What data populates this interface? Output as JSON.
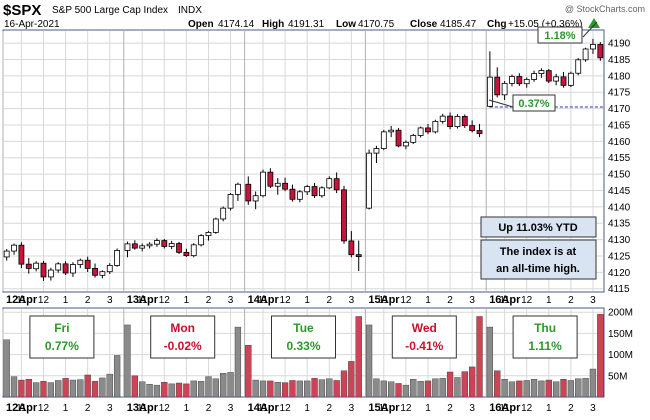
{
  "header": {
    "symbol": "$SPX",
    "name": "S&P 500 Large Cap Index",
    "exchange": "INDX",
    "date": "16-Apr-2021",
    "watermark": "@ StockCharts.com",
    "open_label": "Open",
    "open": "4174.14",
    "high_label": "High",
    "high": "4191.31",
    "low_label": "Low",
    "low": "4170.75",
    "close_label": "Close",
    "close": "4185.47",
    "chg_label": "Chg",
    "chg": "+15.05 (+0.36%)"
  },
  "annotations": {
    "gain_top": "1.18%",
    "gain_bottom": "0.37%",
    "ytd": "Up 11.03% YTD",
    "ath_line1": "The index is at",
    "ath_line2": "an all-time high."
  },
  "days": [
    {
      "name": "Fri",
      "pct": "0.77%",
      "color": "#2a9a2a"
    },
    {
      "name": "Mon",
      "pct": "-0.02%",
      "color": "#c8102e"
    },
    {
      "name": "Tue",
      "pct": "0.33%",
      "color": "#2a9a2a"
    },
    {
      "name": "Wed",
      "pct": "-0.41%",
      "color": "#c8102e"
    },
    {
      "name": "Thu",
      "pct": "1.11%",
      "color": "#2a9a2a"
    }
  ],
  "colors": {
    "up": "#ffffff",
    "down": "#c8143a",
    "frame": "#4a5a8a",
    "grid": "#d8d8d8",
    "vol_up": "#8a8a8a",
    "vol_down": "#cc4455",
    "hline": "#2233aa",
    "label_green": "#2a9a2a"
  },
  "chart_data": [
    {
      "type": "candlestick",
      "title": "$SPX S&P 500 Large Cap Index INDX",
      "ylim": [
        4114,
        4194
      ],
      "yticks": [
        4115,
        4120,
        4125,
        4130,
        4135,
        4140,
        4145,
        4150,
        4155,
        4160,
        4165,
        4170,
        4175,
        4180,
        4185,
        4190
      ],
      "yaxis": "right",
      "grid": true,
      "hline": 4170.5,
      "xtick_labels": [
        "12Apr",
        "11",
        "12",
        "1",
        "2",
        "3",
        "13Apr",
        "11",
        "12",
        "1",
        "2",
        "3",
        "14Apr",
        "11",
        "12",
        "1",
        "2",
        "3",
        "15Apr",
        "11",
        "12",
        "1",
        "2",
        "3",
        "16Apr",
        "11",
        "12",
        "1",
        "2",
        "3"
      ],
      "xtick_bold": [
        "12Apr",
        "13Apr",
        "14Apr",
        "15Apr",
        "16Apr"
      ],
      "sessions": [
        {
          "date": "12Apr",
          "ohlc": [
            [
              4124.7,
              4127.1,
              4123.6,
              4126.5
            ],
            [
              4126.5,
              4128.8,
              4125.4,
              4128.3
            ],
            [
              4128.3,
              4129.2,
              4121.3,
              4122.5
            ],
            [
              4122.5,
              4124.4,
              4119.6,
              4121.2
            ],
            [
              4121.1,
              4123.4,
              4120.3,
              4122.8
            ],
            [
              4122.8,
              4123.5,
              4117.4,
              4118.6
            ],
            [
              4118.6,
              4121.4,
              4117.5,
              4120.7
            ],
            [
              4120.7,
              4123.1,
              4119.9,
              4122.6
            ],
            [
              4122.6,
              4123.4,
              4119.2,
              4119.8
            ],
            [
              4119.8,
              4123.1,
              4118.6,
              4122.4
            ],
            [
              4122.4,
              4124.2,
              4121.3,
              4123.7
            ],
            [
              4123.7,
              4124.8,
              4120.1,
              4121.2
            ],
            [
              4121.2,
              4122.7,
              4118.4,
              4119.1
            ],
            [
              4119.1,
              4120.6,
              4118.2,
              4120.2
            ],
            [
              4120.2,
              4122.8,
              4119.5,
              4122.1
            ],
            [
              4122.1,
              4127.3,
              4121.7,
              4126.7
            ]
          ]
        },
        {
          "date": "13Apr",
          "ohlc": [
            [
              4126.7,
              4129.4,
              4124.6,
              4128.7
            ],
            [
              4128.7,
              4129.8,
              4126.9,
              4127.4
            ],
            [
              4127.4,
              4128.8,
              4126.4,
              4128.1
            ],
            [
              4128.1,
              4129.2,
              4127.3,
              4128.6
            ],
            [
              4128.6,
              4130.4,
              4127.8,
              4129.7
            ],
            [
              4129.7,
              4130.2,
              4127.3,
              4127.9
            ],
            [
              4127.9,
              4129.6,
              4127.1,
              4128.8
            ],
            [
              4128.8,
              4129.3,
              4125.6,
              4126.1
            ],
            [
              4126.1,
              4127.2,
              4124.7,
              4125.1
            ],
            [
              4125.1,
              4128.9,
              4124.6,
              4128.4
            ],
            [
              4128.4,
              4131.7,
              4127.9,
              4131.2
            ],
            [
              4131.2,
              4132.6,
              4129.7,
              4132.2
            ],
            [
              4132.2,
              4136.7,
              4131.8,
              4136.3
            ],
            [
              4136.3,
              4140.1,
              4135.6,
              4139.6
            ],
            [
              4139.6,
              4144.2,
              4138.9,
              4143.8
            ],
            [
              4143.8,
              4147.4,
              4141.8,
              4146.9
            ]
          ]
        },
        {
          "date": "14Apr",
          "ohlc": [
            [
              4146.9,
              4149.3,
              4140.6,
              4141.8
            ],
            [
              4141.8,
              4144.7,
              4139.3,
              4143.4
            ],
            [
              4143.4,
              4151.4,
              4142.9,
              4150.6
            ],
            [
              4150.6,
              4151.8,
              4145.7,
              4146.3
            ],
            [
              4146.3,
              4148.8,
              4143.7,
              4147.2
            ],
            [
              4147.2,
              4148.9,
              4144.8,
              4145.4
            ],
            [
              4145.4,
              4146.8,
              4141.6,
              4142.3
            ],
            [
              4142.3,
              4145.1,
              4141.4,
              4144.6
            ],
            [
              4144.6,
              4146.7,
              4143.6,
              4146.2
            ],
            [
              4146.2,
              4147.3,
              4142.7,
              4143.4
            ],
            [
              4143.4,
              4146.3,
              4142.8,
              4145.8
            ],
            [
              4145.8,
              4149.3,
              4145.4,
              4148.6
            ],
            [
              4148.6,
              4150.5,
              4144.2,
              4145.2
            ],
            [
              4145.2,
              4146.4,
              4128.7,
              4129.6
            ],
            [
              4129.6,
              4132.6,
              4124.6,
              4125.4
            ],
            [
              4125.4,
              4129.7,
              4120.4,
              4124.8
            ]
          ]
        },
        {
          "date": "15Apr",
          "ohlc": [
            [
              4139.6,
              4157.5,
              4139.2,
              4156.4
            ],
            [
              4156.4,
              4158.6,
              4153.4,
              4157.8
            ],
            [
              4157.8,
              4163.5,
              4157.3,
              4162.9
            ],
            [
              4162.9,
              4164.7,
              4161.3,
              4163.4
            ],
            [
              4163.4,
              4164.1,
              4158.2,
              4158.6
            ],
            [
              4158.6,
              4160.3,
              4157.6,
              4159.7
            ],
            [
              4159.7,
              4162.3,
              4159.2,
              4161.8
            ],
            [
              4161.8,
              4164.5,
              4161.2,
              4164.1
            ],
            [
              4164.1,
              4165.3,
              4162.2,
              4162.9
            ],
            [
              4162.9,
              4166.6,
              4162.4,
              4166.1
            ],
            [
              4166.1,
              4168.4,
              4165.4,
              4167.7
            ],
            [
              4167.7,
              4168.8,
              4163.7,
              4164.5
            ],
            [
              4164.5,
              4168.3,
              4163.9,
              4167.6
            ],
            [
              4167.6,
              4168.2,
              4164.1,
              4164.8
            ],
            [
              4164.8,
              4166.4,
              4162.7,
              4163.3
            ],
            [
              4163.3,
              4165.3,
              4161.3,
              4162.4
            ]
          ]
        },
        {
          "date": "16Apr",
          "ohlc": [
            [
              4170.7,
              4187.5,
              4170.4,
              4179.6
            ],
            [
              4179.6,
              4182.6,
              4173.4,
              4174.2
            ],
            [
              4174.2,
              4178.4,
              4172.6,
              4177.7
            ],
            [
              4177.7,
              4180.4,
              4176.8,
              4179.8
            ],
            [
              4179.8,
              4180.8,
              4176.9,
              4177.6
            ],
            [
              4177.6,
              4179.5,
              4176.4,
              4178.9
            ],
            [
              4178.9,
              4181.6,
              4178.2,
              4180.7
            ],
            [
              4180.7,
              4182.3,
              4179.4,
              4181.6
            ],
            [
              4181.6,
              4182.1,
              4177.8,
              4178.4
            ],
            [
              4178.4,
              4180.6,
              4177.1,
              4179.7
            ],
            [
              4179.7,
              4181.2,
              4176.4,
              4177.1
            ],
            [
              4177.1,
              4181.3,
              4176.6,
              4180.8
            ],
            [
              4180.8,
              4185.4,
              4180.2,
              4184.9
            ],
            [
              4184.9,
              4188.6,
              4184.3,
              4188.2
            ],
            [
              4188.2,
              4191.3,
              4186.7,
              4189.6
            ],
            [
              4189.6,
              4190.3,
              4184.6,
              4185.5
            ]
          ]
        }
      ]
    },
    {
      "type": "bar",
      "title": "Volume",
      "ylim": [
        0,
        210
      ],
      "yticks": [
        50,
        100,
        150,
        200
      ],
      "ytick_labels": [
        "50M",
        "100M",
        "150M",
        "200M"
      ],
      "yaxis": "right",
      "grid": true,
      "sessions": [
        {
          "date": "12Apr",
          "values": [
            135,
            48,
            40,
            42,
            34,
            37,
            34,
            39,
            44,
            40,
            41,
            52,
            37,
            45,
            54,
            98
          ]
        },
        {
          "date": "13Apr",
          "values": [
            170,
            50,
            36,
            30,
            28,
            35,
            31,
            33,
            31,
            38,
            37,
            48,
            43,
            56,
            58,
            165
          ]
        },
        {
          "date": "14Apr",
          "values": [
            122,
            40,
            38,
            38,
            35,
            34,
            39,
            38,
            38,
            44,
            41,
            43,
            39,
            62,
            84,
            190
          ]
        },
        {
          "date": "15Apr",
          "values": [
            170,
            43,
            38,
            36,
            32,
            28,
            42,
            37,
            38,
            43,
            44,
            59,
            46,
            60,
            71,
            190
          ]
        },
        {
          "date": "16Apr",
          "values": [
            165,
            62,
            42,
            36,
            38,
            39,
            42,
            38,
            40,
            36,
            42,
            39,
            43,
            44,
            66,
            195
          ]
        }
      ]
    }
  ]
}
